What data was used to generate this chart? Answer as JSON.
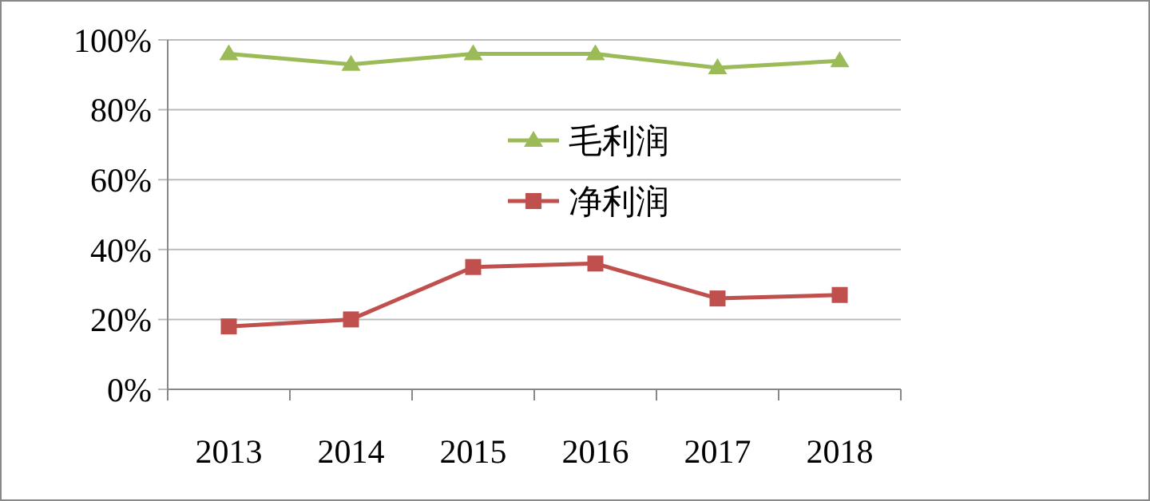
{
  "chart_data": {
    "type": "line",
    "categories": [
      "2013",
      "2014",
      "2015",
      "2016",
      "2017",
      "2018"
    ],
    "series": [
      {
        "name": "毛利润",
        "color": "#9bbb59",
        "marker": "triangle",
        "values": [
          96,
          93,
          96,
          96,
          92,
          94
        ]
      },
      {
        "name": "净利润",
        "color": "#c0504d",
        "marker": "square",
        "values": [
          18,
          20,
          35,
          36,
          26,
          27
        ]
      }
    ],
    "ylim": [
      0,
      100
    ],
    "yticks": [
      {
        "value": 0,
        "label": "0%"
      },
      {
        "value": 20,
        "label": "20%"
      },
      {
        "value": 40,
        "label": "40%"
      },
      {
        "value": 60,
        "label": "60%"
      },
      {
        "value": 80,
        "label": "80%"
      },
      {
        "value": 100,
        "label": "100%"
      }
    ],
    "grid": "y",
    "legend": "top"
  }
}
